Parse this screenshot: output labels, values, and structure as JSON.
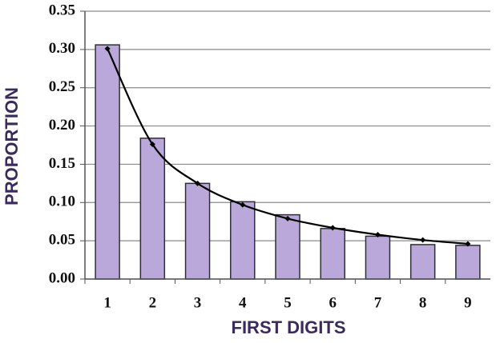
{
  "chart_data": {
    "type": "bar",
    "x_label": "FIRST DIGITS",
    "y_label": "PROPORTION",
    "categories": [
      "1",
      "2",
      "3",
      "4",
      "5",
      "6",
      "7",
      "8",
      "9"
    ],
    "series": [
      {
        "type": "bar",
        "color": "#b9a8d9",
        "values": [
          0.306,
          0.184,
          0.125,
          0.101,
          0.084,
          0.066,
          0.056,
          0.045,
          0.044
        ]
      },
      {
        "type": "line",
        "color": "#000000",
        "values": [
          0.301,
          0.176,
          0.125,
          0.097,
          0.079,
          0.067,
          0.058,
          0.051,
          0.046
        ]
      }
    ],
    "ylim": [
      0,
      0.35
    ],
    "yticks": [
      {
        "value": 0,
        "label": "0.00"
      },
      {
        "value": 0.05,
        "label": "0.05"
      },
      {
        "value": 0.1,
        "label": "0.10"
      },
      {
        "value": 0.15,
        "label": "0.15"
      },
      {
        "value": 0.2,
        "label": "0.20"
      },
      {
        "value": 0.25,
        "label": "0.25"
      },
      {
        "value": 0.3,
        "label": "0.30"
      },
      {
        "value": 0.35,
        "label": "0.35"
      }
    ],
    "grid": true
  }
}
